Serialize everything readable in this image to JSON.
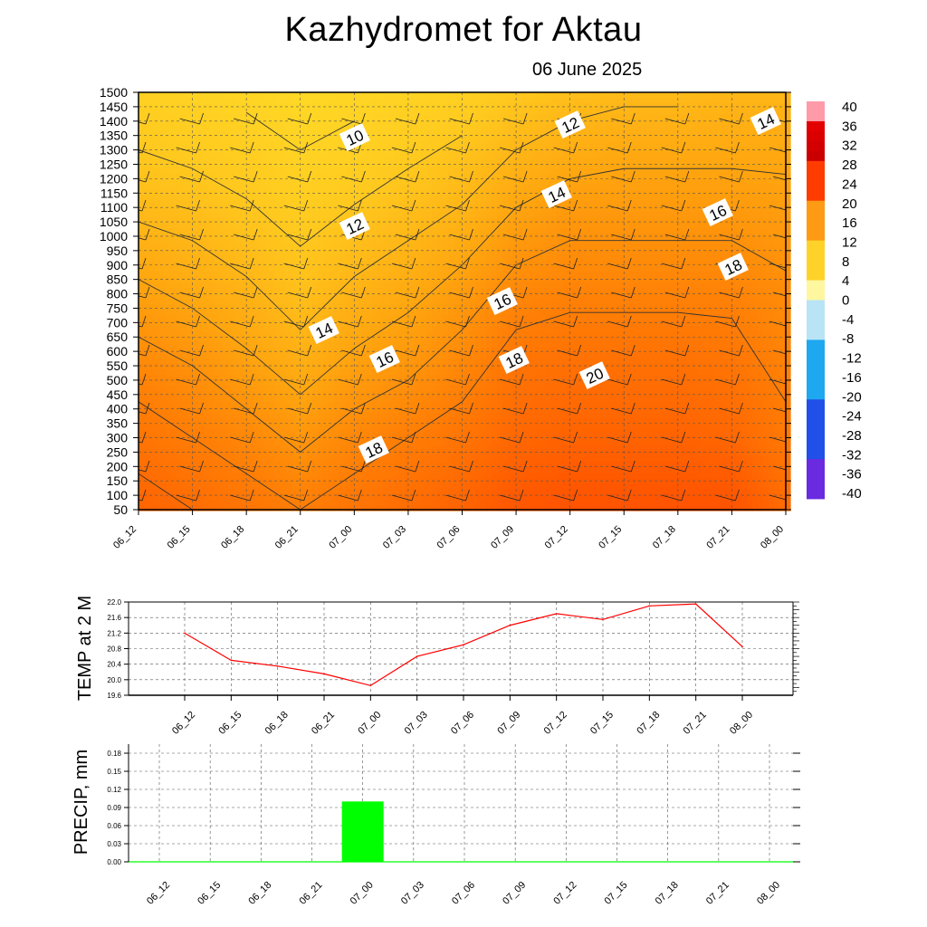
{
  "header": {
    "title": "Kazhydromet  for Aktau",
    "date": "06 June 2025"
  },
  "chart_data": [
    {
      "type": "heatmap",
      "name": "vertical-cross-section",
      "x_labels": [
        "06_12",
        "06_15",
        "06_18",
        "06_21",
        "07_00",
        "07_03",
        "07_06",
        "07_09",
        "07_12",
        "07_15",
        "07_18",
        "07_21",
        "08_00"
      ],
      "y_ticks": [
        50,
        100,
        150,
        200,
        250,
        300,
        350,
        400,
        450,
        500,
        550,
        600,
        650,
        700,
        750,
        800,
        850,
        900,
        950,
        1000,
        1050,
        1100,
        1150,
        1200,
        1250,
        1300,
        1350,
        1400,
        1450,
        1500
      ],
      "ylim": [
        50,
        1500
      ],
      "colorbar_labels": [
        "40",
        "36",
        "32",
        "28",
        "24",
        "20",
        "16",
        "12",
        "8",
        "4",
        "0",
        "-4",
        "-8",
        "-12",
        "-16",
        "-20",
        "-24",
        "-28",
        "-32",
        "-36",
        "-40"
      ],
      "colorbar_range": [
        -40,
        40
      ],
      "contour_labels": [
        "10",
        "12",
        "14",
        "16",
        "18",
        "12",
        "14",
        "16",
        "18",
        "20",
        "14",
        "16",
        "18"
      ],
      "temperature_grid_c": [
        [
          23,
          22,
          21,
          20,
          21,
          22,
          23,
          24.5,
          25,
          25,
          25,
          25,
          22
        ],
        [
          21,
          20,
          19,
          17.5,
          19,
          20,
          21,
          22.5,
          23,
          23,
          23,
          22.5,
          20.5
        ],
        [
          19,
          18,
          16.5,
          15,
          16.5,
          17.5,
          19,
          21,
          21.5,
          21.5,
          21.5,
          21,
          19.5
        ],
        [
          16.5,
          15.5,
          14.5,
          13,
          14.5,
          15.5,
          17,
          19,
          19.5,
          19.5,
          19.5,
          19.5,
          18.5
        ],
        [
          14,
          13.5,
          12.5,
          11.5,
          12.5,
          13.5,
          14.5,
          16.5,
          17.5,
          17.5,
          17.5,
          17.5,
          17
        ],
        [
          12,
          11.5,
          11,
          10,
          10.5,
          11.5,
          12.5,
          14,
          15,
          15.5,
          15.5,
          15.5,
          15.5
        ],
        [
          10.5,
          10,
          9.5,
          9,
          9.5,
          10,
          10.5,
          12,
          13,
          13.5,
          13.5,
          14,
          14
        ]
      ],
      "grid_levels": [
        50,
        300,
        550,
        800,
        1050,
        1300,
        1500
      ]
    },
    {
      "type": "line",
      "name": "temp-2m",
      "ylabel": "TEMP at 2 M",
      "categories": [
        "06_12",
        "06_15",
        "06_18",
        "06_21",
        "07_00",
        "07_03",
        "07_06",
        "07_09",
        "07_12",
        "07_15",
        "07_18",
        "07_21",
        "08_00"
      ],
      "values": [
        21.2,
        20.5,
        20.35,
        20.15,
        19.85,
        20.6,
        20.9,
        21.4,
        21.7,
        21.55,
        21.9,
        21.95,
        20.85
      ],
      "ylim": [
        19.6,
        22.0
      ],
      "y_ticks": [
        "19.6",
        "20.0",
        "20.4",
        "20.8",
        "21.2",
        "21.6",
        "22.0"
      ],
      "line_color": "#ff0000"
    },
    {
      "type": "bar",
      "name": "precip",
      "ylabel": "PRECIP, mm",
      "categories": [
        "06_12",
        "06_15",
        "06_18",
        "06_21",
        "07_00",
        "07_03",
        "07_06",
        "07_09",
        "07_12",
        "07_15",
        "07_18",
        "07_21",
        "08_00"
      ],
      "values": [
        0,
        0,
        0,
        0,
        0.1,
        0,
        0,
        0,
        0,
        0,
        0,
        0,
        0
      ],
      "ylim": [
        0,
        0.195
      ],
      "y_ticks": [
        "0.00",
        "0.03",
        "0.06",
        "0.09",
        "0.12",
        "0.15",
        "0.18"
      ],
      "bar_color": "#00ff00"
    }
  ],
  "colors": {
    "warm_high": "#ff5a00",
    "warm_mid": "#ff9a10",
    "warm_low": "#ffd21e",
    "precip_bar": "#00ff00",
    "temp_line": "#ff0000"
  }
}
